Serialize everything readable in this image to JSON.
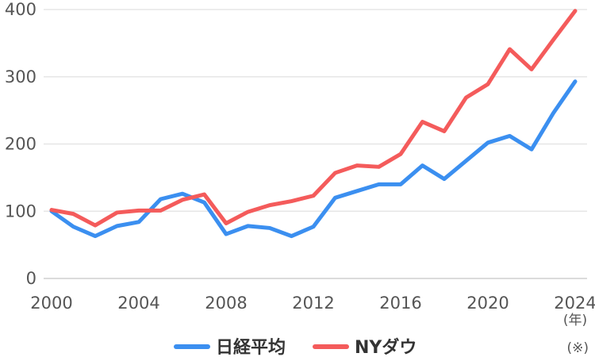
{
  "chart_data": {
    "type": "line",
    "x": [
      2000,
      2001,
      2002,
      2003,
      2004,
      2005,
      2006,
      2007,
      2008,
      2009,
      2010,
      2011,
      2012,
      2013,
      2014,
      2015,
      2016,
      2017,
      2018,
      2019,
      2020,
      2021,
      2022,
      2023,
      2024
    ],
    "series": [
      {
        "name": "日経平均",
        "color": "#3b8ff0",
        "values": [
          100,
          77,
          63,
          78,
          84,
          118,
          126,
          113,
          66,
          78,
          75,
          63,
          77,
          120,
          130,
          140,
          140,
          168,
          148,
          175,
          202,
          212,
          192,
          246,
          293
        ]
      },
      {
        "name": "NYダウ",
        "color": "#f45b5b",
        "values": [
          102,
          96,
          79,
          98,
          101,
          101,
          117,
          125,
          82,
          99,
          109,
          115,
          123,
          157,
          168,
          166,
          185,
          233,
          219,
          269,
          289,
          341,
          311,
          355,
          398
        ]
      }
    ],
    "xticks": [
      2000,
      2004,
      2008,
      2012,
      2016,
      2020,
      2024
    ],
    "yticks": [
      0,
      100,
      200,
      300,
      400
    ],
    "ylim": [
      0,
      400
    ],
    "xlim": [
      2000,
      2024
    ],
    "x_unit": "(年)",
    "note": "(※)",
    "grid": true,
    "legend_position": "bottom-center"
  }
}
